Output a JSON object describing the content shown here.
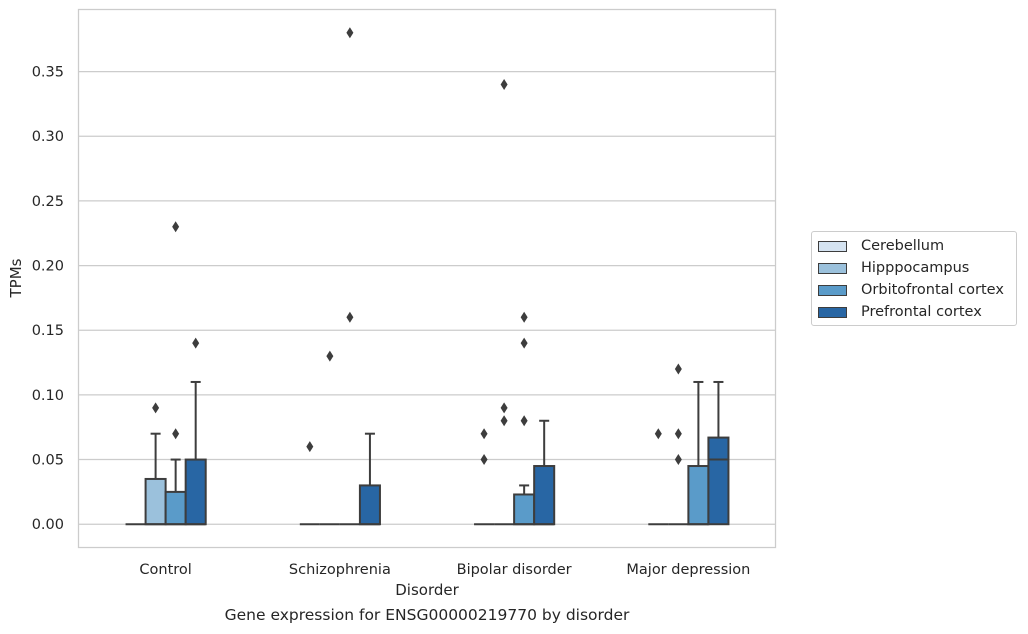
{
  "chart_data": {
    "type": "box",
    "title": "",
    "caption": "Gene expression for ENSG00000219770 by disorder",
    "xlabel": "Disorder",
    "ylabel": "TPMs",
    "ylim": [
      -0.018,
      0.398
    ],
    "yticks": [
      "0.00",
      "0.05",
      "0.10",
      "0.15",
      "0.20",
      "0.25",
      "0.30",
      "0.35"
    ],
    "grid": "horizontal",
    "legend_position": "right",
    "categories": [
      "Control",
      "Schizophrenia",
      "Bipolar disorder",
      "Major depression"
    ],
    "series": [
      {
        "name": "Cerebellum",
        "color": "#d5e3f1",
        "boxes": [
          {
            "q1": 0,
            "median": 0,
            "q3": 0,
            "whisker_low": 0,
            "whisker_high": 0,
            "outliers": []
          },
          {
            "q1": 0,
            "median": 0,
            "q3": 0,
            "whisker_low": 0,
            "whisker_high": 0,
            "outliers": [
              0.06
            ]
          },
          {
            "q1": 0,
            "median": 0,
            "q3": 0,
            "whisker_low": 0,
            "whisker_high": 0,
            "outliers": [
              0.05,
              0.07
            ]
          },
          {
            "q1": 0,
            "median": 0,
            "q3": 0,
            "whisker_low": 0,
            "whisker_high": 0,
            "outliers": [
              0.07
            ]
          }
        ]
      },
      {
        "name": "Hipppocampus",
        "color": "#9bc1dc",
        "boxes": [
          {
            "q1": 0,
            "median": 0,
            "q3": 0.035,
            "whisker_low": 0,
            "whisker_high": 0.07,
            "outliers": [
              0.09
            ]
          },
          {
            "q1": 0,
            "median": 0,
            "q3": 0,
            "whisker_low": 0,
            "whisker_high": 0,
            "outliers": [
              0.13
            ]
          },
          {
            "q1": 0,
            "median": 0,
            "q3": 0,
            "whisker_low": 0,
            "whisker_high": 0,
            "outliers": [
              0.08,
              0.09,
              0.34
            ]
          },
          {
            "q1": 0,
            "median": 0,
            "q3": 0,
            "whisker_low": 0,
            "whisker_high": 0,
            "outliers": [
              0.05,
              0.07,
              0.12
            ]
          }
        ]
      },
      {
        "name": "Orbitofrontal cortex",
        "color": "#5a9bc9",
        "boxes": [
          {
            "q1": 0,
            "median": 0,
            "q3": 0.025,
            "whisker_low": 0,
            "whisker_high": 0.05,
            "outliers": [
              0.07,
              0.23
            ]
          },
          {
            "q1": 0,
            "median": 0,
            "q3": 0,
            "whisker_low": 0,
            "whisker_high": 0,
            "outliers": [
              0.16,
              0.38
            ]
          },
          {
            "q1": 0,
            "median": 0,
            "q3": 0.023,
            "whisker_low": 0,
            "whisker_high": 0.03,
            "outliers": [
              0.08,
              0.14,
              0.16
            ]
          },
          {
            "q1": 0,
            "median": 0,
            "q3": 0.045,
            "whisker_low": 0,
            "whisker_high": 0.11,
            "outliers": []
          }
        ]
      },
      {
        "name": "Prefrontal cortex",
        "color": "#2866a4",
        "boxes": [
          {
            "q1": 0,
            "median": 0,
            "q3": 0.05,
            "whisker_low": 0,
            "whisker_high": 0.11,
            "outliers": [
              0.14
            ]
          },
          {
            "q1": 0,
            "median": 0,
            "q3": 0.03,
            "whisker_low": 0,
            "whisker_high": 0.07,
            "outliers": []
          },
          {
            "q1": 0,
            "median": 0,
            "q3": 0.045,
            "whisker_low": 0,
            "whisker_high": 0.08,
            "outliers": []
          },
          {
            "q1": 0,
            "median": 0.05,
            "q3": 0.067,
            "whisker_low": 0,
            "whisker_high": 0.11,
            "outliers": []
          }
        ]
      }
    ]
  }
}
